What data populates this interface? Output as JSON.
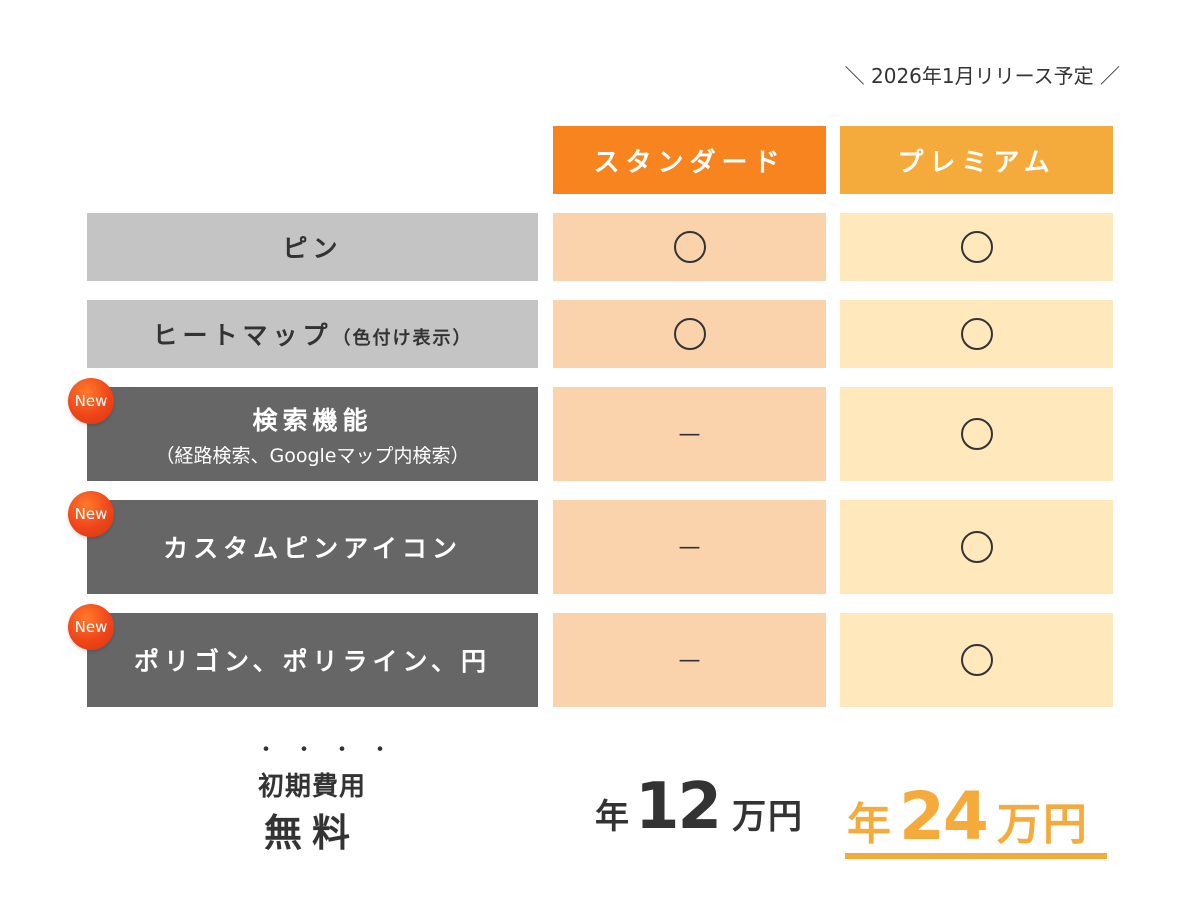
{
  "release_note": "＼ 2026年1月リリース予定 ／",
  "colors": {
    "standard": "#f7841f",
    "premium": "#f5ab3b",
    "standard_cell": "#fad2ab",
    "premium_cell": "#fee8bc",
    "new_badge": "#f0451a"
  },
  "plans": {
    "standard": "スタンダード",
    "premium": "プレミアム"
  },
  "new_badge": "New",
  "rows": [
    {
      "label": "ピン",
      "standard": "circle",
      "premium": "circle"
    },
    {
      "label": "ヒートマップ",
      "sub": "（色付け表示）",
      "standard": "circle",
      "premium": "circle"
    },
    {
      "label": "検索機能",
      "note": "（経路検索、Googleマップ内検索）",
      "is_new": true,
      "standard": "—",
      "premium": "circle"
    },
    {
      "label": "カスタムピンアイコン",
      "is_new": true,
      "standard": "—",
      "premium": "circle"
    },
    {
      "label": "ポリゴン、ポリライン、円",
      "is_new": true,
      "standard": "—",
      "premium": "circle"
    }
  ],
  "footer": {
    "dots": "・・・・",
    "initial_fee_label": "初期費用",
    "initial_fee_value": "無料",
    "standard_price": {
      "prefix": "年",
      "amount": "12",
      "suffix": "万円"
    },
    "premium_price": {
      "prefix": "年",
      "amount": "24",
      "suffix": "万円"
    }
  }
}
